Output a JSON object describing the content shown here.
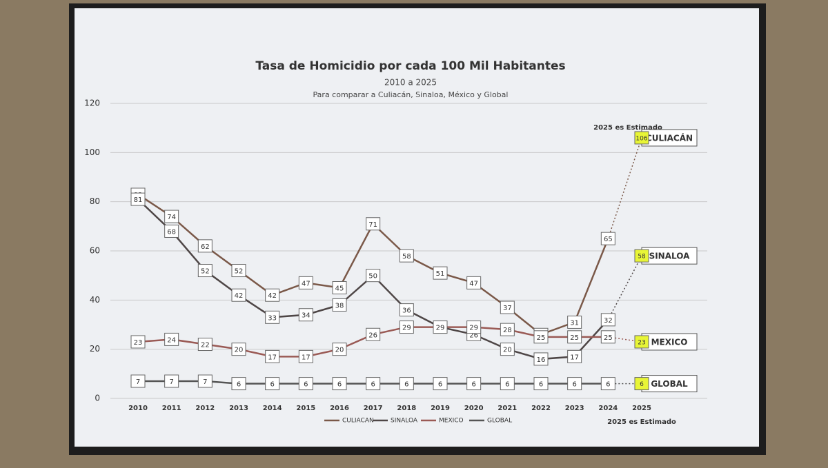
{
  "chart_data": {
    "type": "line",
    "title": "Tasa de Homicidio por cada 100 Mil Habitantes",
    "subtitle": "2010 a 2025",
    "note": "Para comparar a Culiacán, Sinaloa, México y Global",
    "estimate_note_top": "2025 es Estimado",
    "estimate_note_bottom": "2025 es Estimado",
    "categories": [
      "2010",
      "2011",
      "2012",
      "2013",
      "2014",
      "2015",
      "2016",
      "2017",
      "2018",
      "2019",
      "2020",
      "2021",
      "2022",
      "2023",
      "2024",
      "2025"
    ],
    "series": [
      {
        "name": "CULIACAN",
        "label": "CULIACÁN",
        "color": "#7a5848",
        "values": [
          83,
          74,
          62,
          52,
          42,
          47,
          45,
          71,
          58,
          51,
          47,
          37,
          26,
          31,
          65,
          106
        ]
      },
      {
        "name": "SINALOA",
        "label": "SINALOA",
        "color": "#4e4646",
        "values": [
          81,
          68,
          52,
          42,
          33,
          34,
          38,
          50,
          36,
          29,
          26,
          20,
          16,
          17,
          32,
          58
        ]
      },
      {
        "name": "MEXICO",
        "label": "MEXICO",
        "color": "#9a5a55",
        "values": [
          23,
          24,
          22,
          20,
          17,
          17,
          20,
          26,
          29,
          29,
          29,
          28,
          25,
          25,
          25,
          23
        ]
      },
      {
        "name": "GLOBAL",
        "label": "GLOBAL",
        "color": "#555555",
        "values": [
          7,
          7,
          7,
          6,
          6,
          6,
          6,
          6,
          6,
          6,
          6,
          6,
          6,
          6,
          6,
          6
        ]
      }
    ],
    "ylim": [
      0,
      120
    ],
    "yticks": [
      0,
      20,
      40,
      60,
      80,
      100,
      120
    ],
    "grid": true
  }
}
